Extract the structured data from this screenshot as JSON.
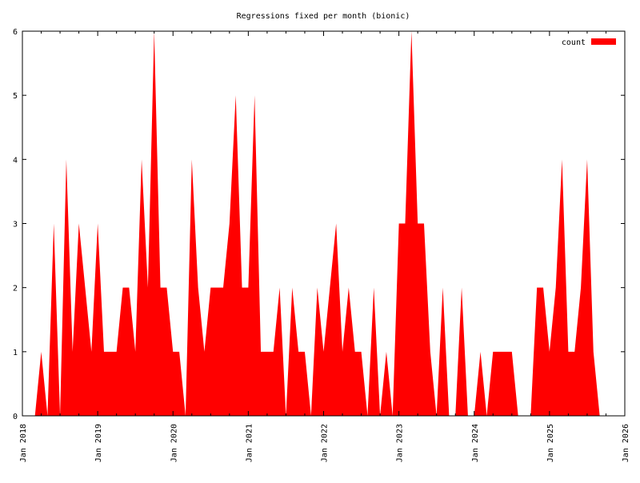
{
  "chart_data": {
    "type": "area",
    "title": "Regressions fixed per month (bionic)",
    "xlabel": "",
    "ylabel": "",
    "x_range": [
      "2018-01",
      "2026-01"
    ],
    "ylim": [
      0,
      6
    ],
    "y_ticks": [
      "0",
      "1",
      "2",
      "3",
      "4",
      "5",
      "6"
    ],
    "x_ticks": [
      {
        "date": "2018-01",
        "label": "Jan 2018"
      },
      {
        "date": "2019-01",
        "label": "Jan 2019"
      },
      {
        "date": "2020-01",
        "label": "Jan 2020"
      },
      {
        "date": "2021-01",
        "label": "Jan 2021"
      },
      {
        "date": "2022-01",
        "label": "Jan 2022"
      },
      {
        "date": "2023-01",
        "label": "Jan 2023"
      },
      {
        "date": "2024-01",
        "label": "Jan 2024"
      },
      {
        "date": "2025-01",
        "label": "Jan 2025"
      },
      {
        "date": "2026-01",
        "label": "Jan 2026"
      }
    ],
    "legend_position": "top-right",
    "grid": false,
    "series": [
      {
        "name": "count",
        "color": "#ff0000",
        "points": [
          [
            "2018-03",
            0
          ],
          [
            "2018-04",
            1
          ],
          [
            "2018-05",
            0
          ],
          [
            "2018-06",
            3
          ],
          [
            "2018-07",
            0
          ],
          [
            "2018-08",
            4
          ],
          [
            "2018-09",
            1
          ],
          [
            "2018-10",
            3
          ],
          [
            "2018-11",
            2
          ],
          [
            "2018-12",
            1
          ],
          [
            "2019-01",
            3
          ],
          [
            "2019-02",
            1
          ],
          [
            "2019-03",
            1
          ],
          [
            "2019-04",
            1
          ],
          [
            "2019-05",
            2
          ],
          [
            "2019-06",
            2
          ],
          [
            "2019-07",
            1
          ],
          [
            "2019-08",
            4
          ],
          [
            "2019-09",
            2
          ],
          [
            "2019-10",
            6
          ],
          [
            "2019-11",
            2
          ],
          [
            "2019-12",
            2
          ],
          [
            "2020-01",
            1
          ],
          [
            "2020-02",
            1
          ],
          [
            "2020-03",
            0
          ],
          [
            "2020-04",
            4
          ],
          [
            "2020-05",
            2
          ],
          [
            "2020-06",
            1
          ],
          [
            "2020-07",
            2
          ],
          [
            "2020-08",
            2
          ],
          [
            "2020-09",
            2
          ],
          [
            "2020-10",
            3
          ],
          [
            "2020-11",
            5
          ],
          [
            "2020-12",
            2
          ],
          [
            "2021-01",
            2
          ],
          [
            "2021-02",
            5
          ],
          [
            "2021-03",
            1
          ],
          [
            "2021-04",
            1
          ],
          [
            "2021-05",
            1
          ],
          [
            "2021-06",
            2
          ],
          [
            "2021-07",
            0
          ],
          [
            "2021-08",
            2
          ],
          [
            "2021-09",
            1
          ],
          [
            "2021-10",
            1
          ],
          [
            "2021-11",
            0
          ],
          [
            "2021-12",
            2
          ],
          [
            "2022-01",
            1
          ],
          [
            "2022-02",
            2
          ],
          [
            "2022-03",
            3
          ],
          [
            "2022-04",
            1
          ],
          [
            "2022-05",
            2
          ],
          [
            "2022-06",
            1
          ],
          [
            "2022-07",
            1
          ],
          [
            "2022-08",
            0
          ],
          [
            "2022-09",
            2
          ],
          [
            "2022-10",
            0
          ],
          [
            "2022-11",
            1
          ],
          [
            "2022-12",
            0
          ],
          [
            "2023-01",
            3
          ],
          [
            "2023-02",
            3
          ],
          [
            "2023-03",
            6
          ],
          [
            "2023-04",
            3
          ],
          [
            "2023-05",
            3
          ],
          [
            "2023-06",
            1
          ],
          [
            "2023-07",
            0
          ],
          [
            "2023-08",
            2
          ],
          [
            "2023-09",
            0
          ],
          [
            "2023-10",
            0
          ],
          [
            "2023-11",
            2
          ],
          [
            "2023-12",
            0
          ],
          [
            "2024-01",
            0
          ],
          [
            "2024-02",
            1
          ],
          [
            "2024-03",
            0
          ],
          [
            "2024-04",
            1
          ],
          [
            "2024-05",
            1
          ],
          [
            "2024-06",
            1
          ],
          [
            "2024-07",
            1
          ],
          [
            "2024-08",
            0
          ],
          [
            "2024-09",
            0
          ],
          [
            "2024-10",
            0
          ],
          [
            "2024-11",
            2
          ],
          [
            "2024-12",
            2
          ],
          [
            "2025-01",
            1
          ],
          [
            "2025-02",
            2
          ],
          [
            "2025-03",
            4
          ],
          [
            "2025-04",
            1
          ],
          [
            "2025-05",
            1
          ],
          [
            "2025-06",
            2
          ],
          [
            "2025-07",
            4
          ],
          [
            "2025-08",
            1
          ],
          [
            "2025-09",
            0
          ]
        ]
      }
    ]
  }
}
